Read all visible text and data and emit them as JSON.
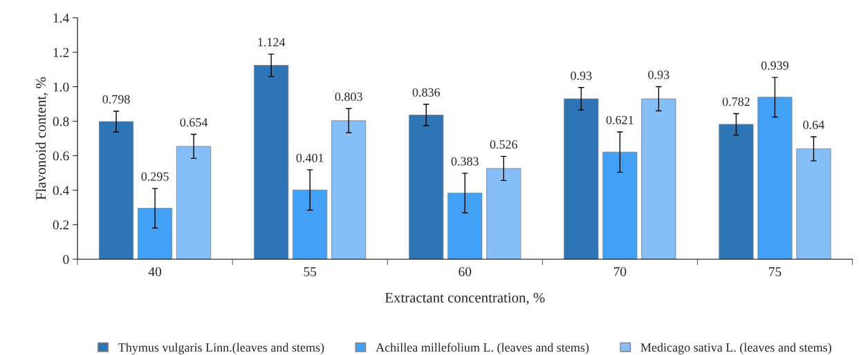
{
  "chart_data": {
    "type": "bar",
    "xlabel": "Extractant concentration, %",
    "ylabel": "Flavonoid content, %",
    "categories": [
      "40",
      "55",
      "60",
      "70",
      "75"
    ],
    "series": [
      {
        "name": "Thymus vulgaris Linn.(leaves and stems)",
        "color": "#2e75b6",
        "values": [
          0.798,
          1.124,
          0.836,
          0.93,
          0.782
        ],
        "errors": [
          0.06,
          0.065,
          0.062,
          0.065,
          0.062
        ]
      },
      {
        "name": "Achillea millefolium L. (leaves and stems)",
        "color": "#42a1f7",
        "values": [
          0.295,
          0.401,
          0.383,
          0.621,
          0.939
        ],
        "errors": [
          0.115,
          0.117,
          0.115,
          0.117,
          0.115
        ]
      },
      {
        "name": "Medicago sativa L. (leaves and stems)",
        "color": "#86bef7",
        "values": [
          0.654,
          0.803,
          0.526,
          0.93,
          0.64
        ],
        "errors": [
          0.07,
          0.07,
          0.07,
          0.07,
          0.07
        ]
      }
    ],
    "ylim": [
      0,
      1.4
    ],
    "yticks": [
      0,
      0.2,
      0.4,
      0.6,
      0.8,
      {
        "value": 1.0,
        "label": "1.0"
      },
      1.2,
      1.4
    ],
    "data_labels": true,
    "grid": false,
    "legend": "bottom"
  }
}
